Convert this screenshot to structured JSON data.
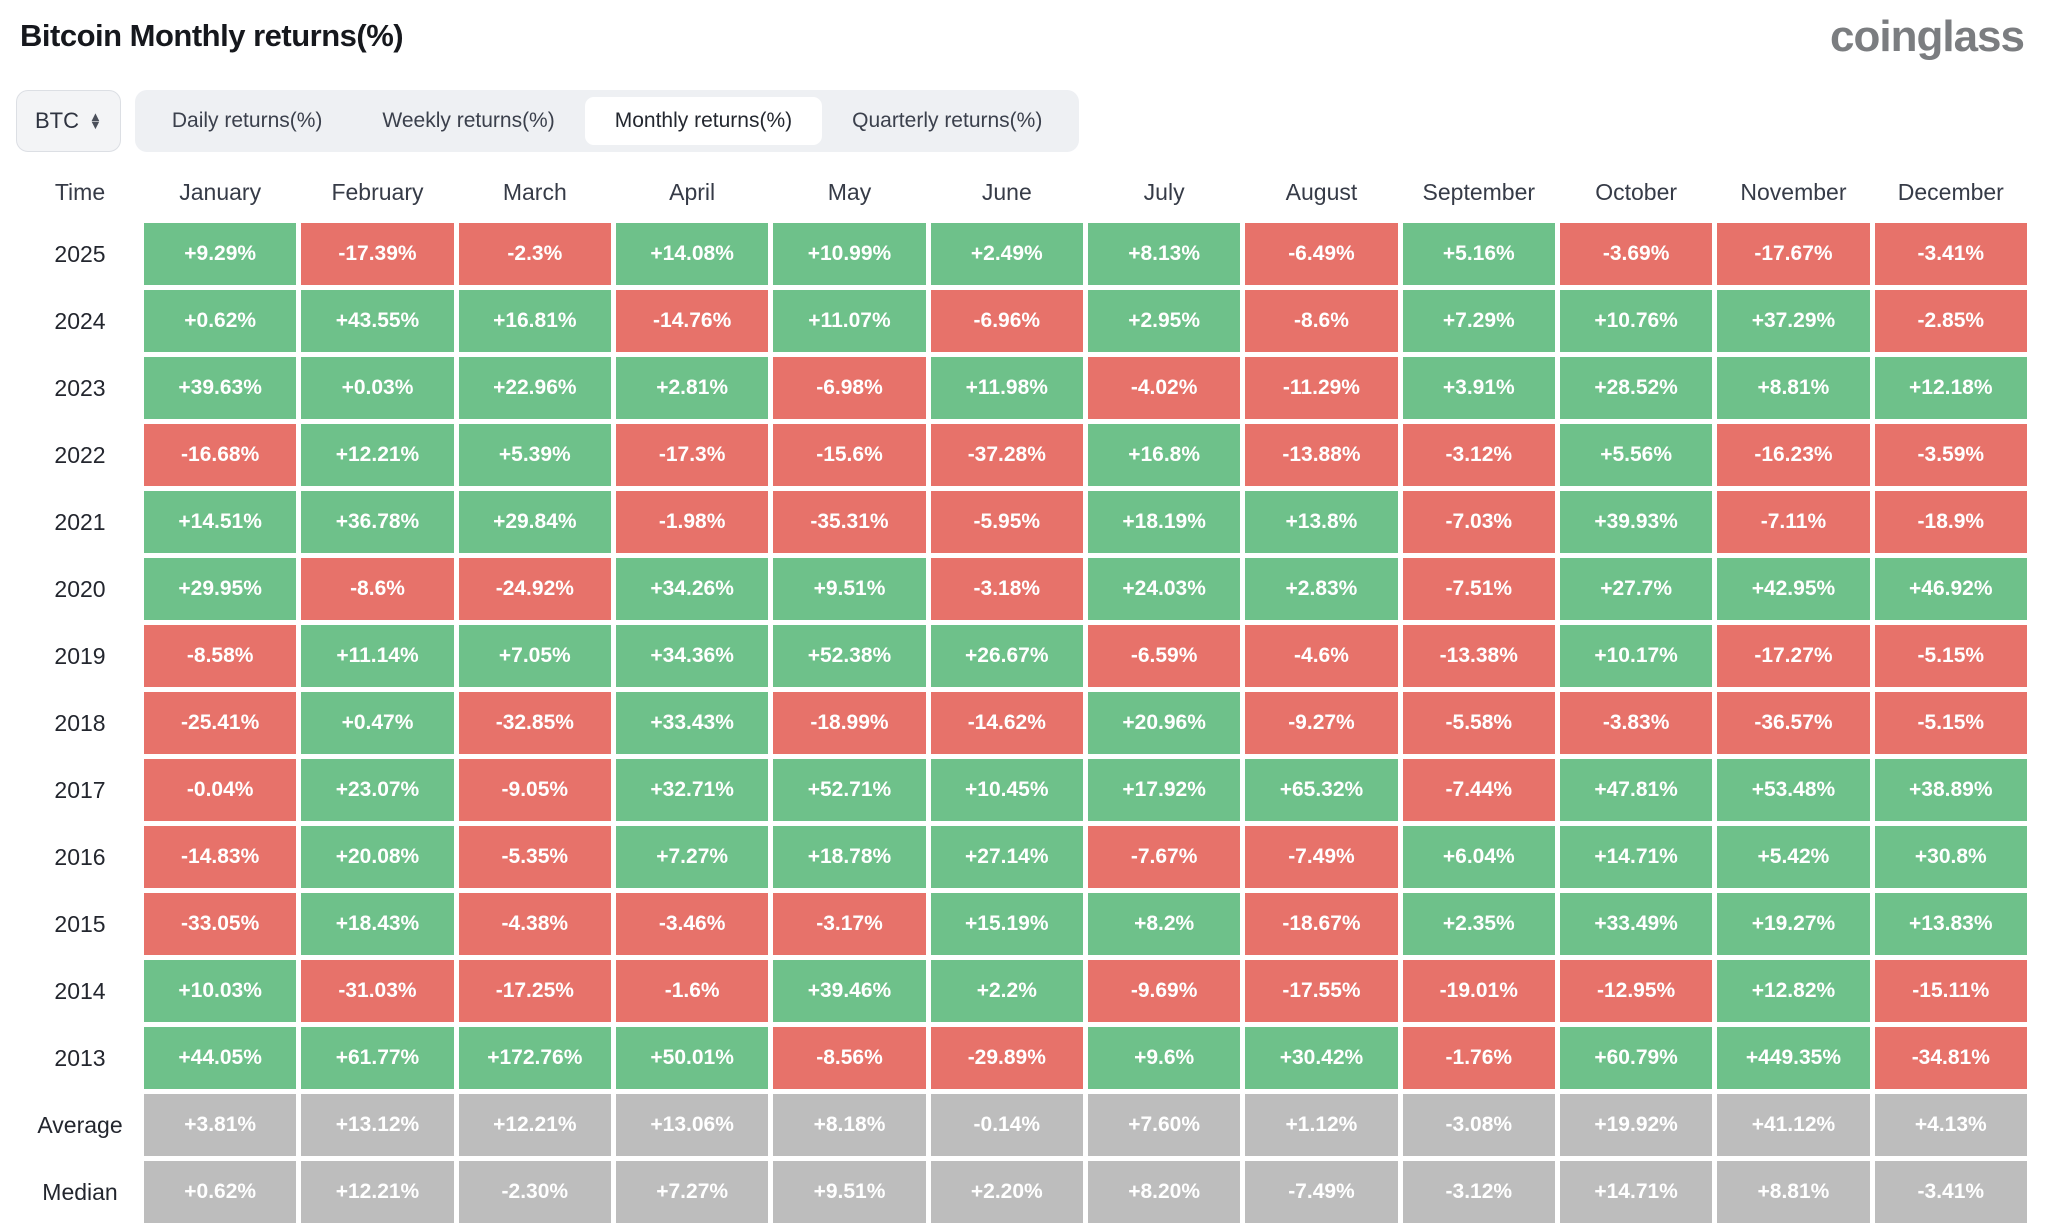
{
  "page": {
    "title": "Bitcoin Monthly returns(%)",
    "logo": "coinglass"
  },
  "controls": {
    "symbol_select": {
      "value": "BTC"
    },
    "tabs": [
      {
        "label": "Daily returns(%)",
        "active": false
      },
      {
        "label": "Weekly returns(%)",
        "active": false
      },
      {
        "label": "Monthly returns(%)",
        "active": true
      },
      {
        "label": "Quarterly returns(%)",
        "active": false
      }
    ]
  },
  "colors": {
    "positive": "#6EC18A",
    "negative": "#E7726A",
    "summary": "#BDBDBD",
    "cell_text": "#FFFFFF"
  },
  "chart_data": {
    "type": "heatmap",
    "title": "Bitcoin Monthly returns(%)",
    "row_header": "Time",
    "columns": [
      "January",
      "February",
      "March",
      "April",
      "May",
      "June",
      "July",
      "August",
      "September",
      "October",
      "November",
      "December"
    ],
    "rows": [
      {
        "label": "2025",
        "summary": false,
        "values": [
          "+9.29%",
          "-17.39%",
          "-2.3%",
          "+14.08%",
          "+10.99%",
          "+2.49%",
          "+8.13%",
          "-6.49%",
          "+5.16%",
          "-3.69%",
          "-17.67%",
          "-3.41%"
        ]
      },
      {
        "label": "2024",
        "summary": false,
        "values": [
          "+0.62%",
          "+43.55%",
          "+16.81%",
          "-14.76%",
          "+11.07%",
          "-6.96%",
          "+2.95%",
          "-8.6%",
          "+7.29%",
          "+10.76%",
          "+37.29%",
          "-2.85%"
        ]
      },
      {
        "label": "2023",
        "summary": false,
        "values": [
          "+39.63%",
          "+0.03%",
          "+22.96%",
          "+2.81%",
          "-6.98%",
          "+11.98%",
          "-4.02%",
          "-11.29%",
          "+3.91%",
          "+28.52%",
          "+8.81%",
          "+12.18%"
        ]
      },
      {
        "label": "2022",
        "summary": false,
        "values": [
          "-16.68%",
          "+12.21%",
          "+5.39%",
          "-17.3%",
          "-15.6%",
          "-37.28%",
          "+16.8%",
          "-13.88%",
          "-3.12%",
          "+5.56%",
          "-16.23%",
          "-3.59%"
        ]
      },
      {
        "label": "2021",
        "summary": false,
        "values": [
          "+14.51%",
          "+36.78%",
          "+29.84%",
          "-1.98%",
          "-35.31%",
          "-5.95%",
          "+18.19%",
          "+13.8%",
          "-7.03%",
          "+39.93%",
          "-7.11%",
          "-18.9%"
        ]
      },
      {
        "label": "2020",
        "summary": false,
        "values": [
          "+29.95%",
          "-8.6%",
          "-24.92%",
          "+34.26%",
          "+9.51%",
          "-3.18%",
          "+24.03%",
          "+2.83%",
          "-7.51%",
          "+27.7%",
          "+42.95%",
          "+46.92%"
        ]
      },
      {
        "label": "2019",
        "summary": false,
        "values": [
          "-8.58%",
          "+11.14%",
          "+7.05%",
          "+34.36%",
          "+52.38%",
          "+26.67%",
          "-6.59%",
          "-4.6%",
          "-13.38%",
          "+10.17%",
          "-17.27%",
          "-5.15%"
        ]
      },
      {
        "label": "2018",
        "summary": false,
        "values": [
          "-25.41%",
          "+0.47%",
          "-32.85%",
          "+33.43%",
          "-18.99%",
          "-14.62%",
          "+20.96%",
          "-9.27%",
          "-5.58%",
          "-3.83%",
          "-36.57%",
          "-5.15%"
        ]
      },
      {
        "label": "2017",
        "summary": false,
        "values": [
          "-0.04%",
          "+23.07%",
          "-9.05%",
          "+32.71%",
          "+52.71%",
          "+10.45%",
          "+17.92%",
          "+65.32%",
          "-7.44%",
          "+47.81%",
          "+53.48%",
          "+38.89%"
        ]
      },
      {
        "label": "2016",
        "summary": false,
        "values": [
          "-14.83%",
          "+20.08%",
          "-5.35%",
          "+7.27%",
          "+18.78%",
          "+27.14%",
          "-7.67%",
          "-7.49%",
          "+6.04%",
          "+14.71%",
          "+5.42%",
          "+30.8%"
        ]
      },
      {
        "label": "2015",
        "summary": false,
        "values": [
          "-33.05%",
          "+18.43%",
          "-4.38%",
          "-3.46%",
          "-3.17%",
          "+15.19%",
          "+8.2%",
          "-18.67%",
          "+2.35%",
          "+33.49%",
          "+19.27%",
          "+13.83%"
        ]
      },
      {
        "label": "2014",
        "summary": false,
        "values": [
          "+10.03%",
          "-31.03%",
          "-17.25%",
          "-1.6%",
          "+39.46%",
          "+2.2%",
          "-9.69%",
          "-17.55%",
          "-19.01%",
          "-12.95%",
          "+12.82%",
          "-15.11%"
        ]
      },
      {
        "label": "2013",
        "summary": false,
        "values": [
          "+44.05%",
          "+61.77%",
          "+172.76%",
          "+50.01%",
          "-8.56%",
          "-29.89%",
          "+9.6%",
          "+30.42%",
          "-1.76%",
          "+60.79%",
          "+449.35%",
          "-34.81%"
        ]
      },
      {
        "label": "Average",
        "summary": true,
        "values": [
          "+3.81%",
          "+13.12%",
          "+12.21%",
          "+13.06%",
          "+8.18%",
          "-0.14%",
          "+7.60%",
          "+1.12%",
          "-3.08%",
          "+19.92%",
          "+41.12%",
          "+4.13%"
        ]
      },
      {
        "label": "Median",
        "summary": true,
        "values": [
          "+0.62%",
          "+12.21%",
          "-2.30%",
          "+7.27%",
          "+9.51%",
          "+2.20%",
          "+8.20%",
          "-7.49%",
          "-3.12%",
          "+14.71%",
          "+8.81%",
          "-3.41%"
        ]
      }
    ]
  }
}
